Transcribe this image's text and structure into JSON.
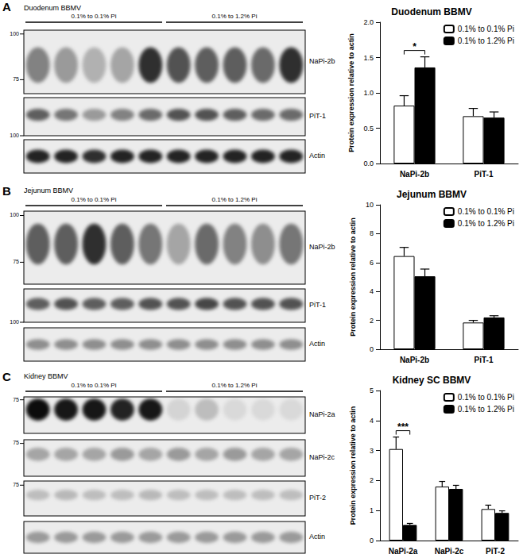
{
  "chart_data": [
    {
      "type": "bar",
      "title": "Duodenum BBMV",
      "y_label": "Protein expression relative to actin",
      "categories": [
        "NaPi-2b",
        "PiT-1"
      ],
      "series": [
        {
          "name": "0.1% to 0.1% Pi",
          "color": "#ffffff",
          "values": [
            0.82,
            0.67
          ],
          "errors": [
            0.14,
            0.11
          ]
        },
        {
          "name": "0.1% to 1.2% Pi",
          "color": "#000000",
          "values": [
            1.36,
            0.65
          ],
          "errors": [
            0.15,
            0.08
          ]
        }
      ],
      "ylim": [
        0,
        2
      ],
      "yticks": [
        {
          "value": 0,
          "label": "0.0"
        },
        {
          "value": 0.5,
          "label": "0.5"
        },
        {
          "value": 1,
          "label": "1.0"
        },
        {
          "value": 1.5,
          "label": "1.5"
        },
        {
          "value": 2,
          "label": "2.0"
        }
      ],
      "grid": false,
      "legend": "upper right",
      "annotations": [
        {
          "text": "*",
          "category": "NaPi-2b"
        }
      ]
    },
    {
      "type": "bar",
      "title": "Jejunum BBMV",
      "y_label": "Protein expression relative to actin",
      "categories": [
        "NaPi-2b",
        "PiT-1"
      ],
      "series": [
        {
          "name": "0.1% to 0.1% Pi",
          "color": "#ffffff",
          "values": [
            6.45,
            1.85
          ],
          "errors": [
            0.6,
            0.15
          ]
        },
        {
          "name": "0.1% to 1.2% Pi",
          "color": "#000000",
          "values": [
            5.05,
            2.2
          ],
          "errors": [
            0.5,
            0.12
          ]
        }
      ],
      "ylim": [
        0,
        10
      ],
      "yticks": [
        0,
        2,
        4,
        6,
        8,
        10
      ],
      "grid": false,
      "legend": "upper right"
    },
    {
      "type": "bar",
      "title": "Kidney SC BBMV",
      "y_label": "Protein expression relative to actin",
      "categories": [
        "NaPi-2a",
        "NaPi-2c",
        "PiT-2"
      ],
      "series": [
        {
          "name": "0.1% to 0.1% Pi",
          "color": "#ffffff",
          "values": [
            3.05,
            1.8,
            1.05
          ],
          "errors": [
            0.4,
            0.17,
            0.13
          ]
        },
        {
          "name": "0.1% to 1.2% Pi",
          "color": "#000000",
          "values": [
            0.52,
            1.72,
            0.92
          ],
          "errors": [
            0.05,
            0.12,
            0.07
          ]
        }
      ],
      "ylim": [
        0,
        5
      ],
      "yticks": [
        0,
        1,
        2,
        3,
        4,
        5
      ],
      "grid": false,
      "legend": "upper right",
      "annotations": [
        {
          "text": "***",
          "category": "NaPi-2a"
        }
      ]
    }
  ],
  "blot_panels": [
    {
      "letter": "A",
      "title": "Duodenum BBMV",
      "groups": [
        "0.1% to 0.1% Pi",
        "0.1% to 1.2% Pi"
      ],
      "blots": [
        {
          "label": "NaPi-2b",
          "markers": [
            100,
            75
          ],
          "intensity": [
            0.45,
            0.35,
            0.25,
            0.3,
            0.8,
            0.65,
            0.6,
            0.6,
            0.55,
            0.8
          ]
        },
        {
          "label": "PiT-1",
          "markers": [
            100
          ],
          "intensity": [
            0.6,
            0.5,
            0.35,
            0.45,
            0.55,
            0.65,
            0.65,
            0.6,
            0.55,
            0.55
          ]
        },
        {
          "label": "Actin",
          "intensity": [
            0.85,
            0.85,
            0.8,
            0.85,
            0.85,
            0.85,
            0.85,
            0.85,
            0.85,
            0.85
          ]
        }
      ]
    },
    {
      "letter": "B",
      "title": "Jejunum BBMV",
      "groups": [
        "0.1% to 0.1% Pi",
        "0.1% to 1.2% Pi"
      ],
      "blots": [
        {
          "label": "NaPi-2b",
          "markers": [
            100,
            75
          ],
          "intensity": [
            0.6,
            0.6,
            0.8,
            0.6,
            0.5,
            0.3,
            0.55,
            0.45,
            0.4,
            0.5
          ]
        },
        {
          "label": "PiT-1",
          "markers": [
            100
          ],
          "intensity": [
            0.6,
            0.65,
            0.6,
            0.6,
            0.65,
            0.65,
            0.7,
            0.65,
            0.65,
            0.65
          ]
        },
        {
          "label": "Actin",
          "intensity": [
            0.4,
            0.4,
            0.4,
            0.4,
            0.4,
            0.4,
            0.4,
            0.4,
            0.4,
            0.4
          ]
        }
      ]
    },
    {
      "letter": "C",
      "title": "Kidney BBMV",
      "groups": [
        "0.1% to 0.1% Pi",
        "0.1% to 1.2% Pi"
      ],
      "blots": [
        {
          "label": "NaPi-2a",
          "markers": [
            75
          ],
          "intensity": [
            0.95,
            0.9,
            0.9,
            0.85,
            0.9,
            0.1,
            0.2,
            0.08,
            0.08,
            0.08
          ]
        },
        {
          "label": "NaPi-2c",
          "markers": [
            75
          ],
          "intensity": [
            0.3,
            0.3,
            0.3,
            0.35,
            0.3,
            0.35,
            0.3,
            0.35,
            0.3,
            0.3
          ]
        },
        {
          "label": "PiT-2",
          "markers": [
            75
          ],
          "intensity": [
            0.2,
            0.22,
            0.2,
            0.2,
            0.22,
            0.2,
            0.2,
            0.2,
            0.2,
            0.2
          ]
        },
        {
          "label": "Actin",
          "intensity": [
            0.35,
            0.35,
            0.35,
            0.35,
            0.35,
            0.35,
            0.35,
            0.35,
            0.35,
            0.35
          ]
        }
      ]
    }
  ]
}
